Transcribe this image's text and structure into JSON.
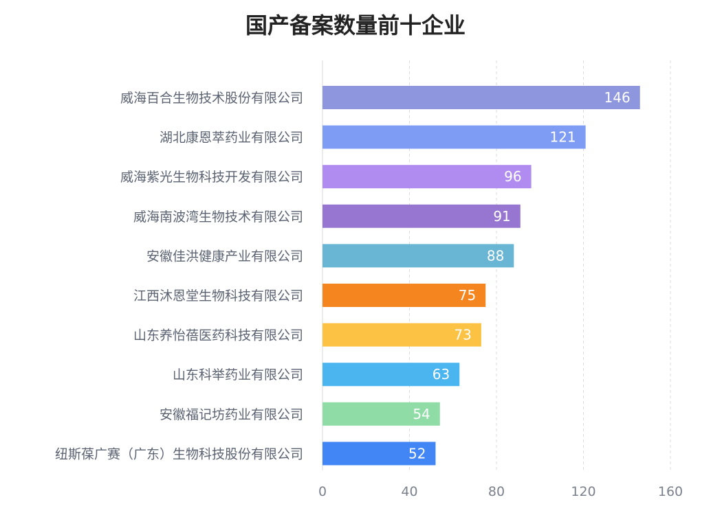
{
  "chart_data": {
    "type": "bar",
    "orientation": "horizontal",
    "title": "国产备案数量前十企业",
    "categories": [
      "威海百合生物技术股份有限公司",
      "湖北康恩萃药业有限公司",
      "威海紫光生物科技开发有限公司",
      "威海南波湾生物技术有限公司",
      "安徽佳洪健康产业有限公司",
      "江西沐恩堂生物科技有限公司",
      "山东养怡蓓医药科技有限公司",
      "山东科举药业有限公司",
      "安徽福记坊药业有限公司",
      "纽斯葆广赛（广东）生物科技股份有限公司"
    ],
    "values": [
      146,
      121,
      96,
      91,
      88,
      75,
      73,
      63,
      54,
      52
    ],
    "colors": [
      "#8e97de",
      "#7f9cf5",
      "#b08cf0",
      "#9676d0",
      "#69b6d4",
      "#f5861f",
      "#fbc244",
      "#4ab5ef",
      "#8fdca6",
      "#4285f4"
    ],
    "xlim": [
      0,
      160
    ],
    "xticks": [
      "0",
      "40",
      "80",
      "120",
      "160"
    ],
    "grid": true,
    "xlabel": "",
    "ylabel": ""
  }
}
